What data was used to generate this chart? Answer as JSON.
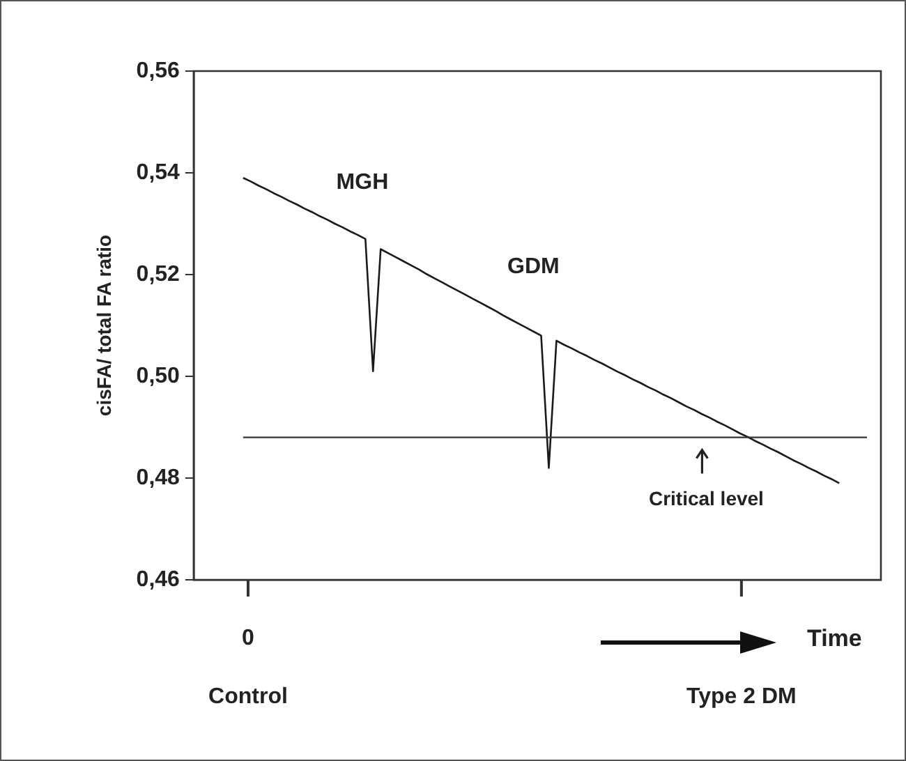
{
  "chart_data": {
    "type": "line",
    "ylabel": "cisFA/ total FA ratio",
    "xlabel": "Time",
    "categories": [
      null,
      null,
      null,
      null,
      null,
      null,
      null,
      null,
      null,
      null,
      null,
      null,
      null,
      null,
      null,
      null,
      null,
      null,
      null,
      null,
      null,
      null,
      null,
      null,
      null,
      null,
      null,
      null,
      null,
      null,
      null,
      null,
      null,
      null,
      null,
      null,
      null,
      null,
      null,
      null,
      null,
      null,
      null,
      null,
      null,
      null,
      null,
      null,
      null,
      null,
      null,
      null,
      null,
      null,
      null,
      null,
      null,
      null,
      null,
      null,
      null,
      null,
      null,
      null,
      null,
      null,
      null,
      null,
      null,
      null,
      null,
      null,
      null,
      null,
      null,
      null,
      null,
      null,
      null
    ],
    "series": [
      {
        "color": "#1a1a1a",
        "values": [
          0.539,
          0.5383,
          0.5375,
          0.5368,
          0.536,
          0.5353,
          0.5345,
          0.5338,
          0.533,
          0.5323,
          0.5315,
          0.5308,
          0.53,
          0.5293,
          0.5285,
          0.5278,
          0.527,
          0.501,
          0.525,
          0.5242,
          0.5234,
          0.5226,
          0.5218,
          0.521,
          0.5201,
          0.5193,
          0.5185,
          0.5177,
          0.5169,
          0.5161,
          0.5153,
          0.5145,
          0.5137,
          0.5129,
          0.512,
          0.5112,
          0.5104,
          0.5096,
          0.5088,
          0.508,
          0.482,
          0.507,
          0.5062,
          0.5055,
          0.5047,
          0.504,
          0.5032,
          0.5025,
          0.5017,
          0.5009,
          0.5002,
          0.4994,
          0.4987,
          0.4979,
          0.4972,
          0.4964,
          0.4957,
          0.4949,
          0.4941,
          0.4934,
          0.4926,
          0.4919,
          0.4911,
          0.4904,
          0.4896,
          0.4888,
          0.4881,
          0.4873,
          0.4866,
          0.4858,
          0.4851,
          0.4843,
          0.4835,
          0.4828,
          0.482,
          0.4813,
          0.4805,
          0.4798,
          0.479
        ]
      }
    ],
    "ylim": [
      0.46,
      0.56
    ],
    "yticks": [
      {
        "value": 0.46,
        "label": "0,46"
      },
      {
        "value": 0.48,
        "label": "0,48"
      },
      {
        "value": 0.5,
        "label": "0,50"
      },
      {
        "value": 0.52,
        "label": "0,52"
      },
      {
        "value": 0.54,
        "label": "0,54"
      },
      {
        "value": 0.56,
        "label": "0,56"
      }
    ],
    "ref_lines": [
      {
        "axis": "y",
        "value": 0.488,
        "label": "Critical level",
        "color": "#333333"
      }
    ],
    "annotations": [
      "MGH",
      "GDM",
      "0",
      "Control",
      "Type 2 DM"
    ],
    "tick_labels": "y",
    "grid": false,
    "legend": false,
    "marker": "none",
    "line_style": "solid"
  }
}
